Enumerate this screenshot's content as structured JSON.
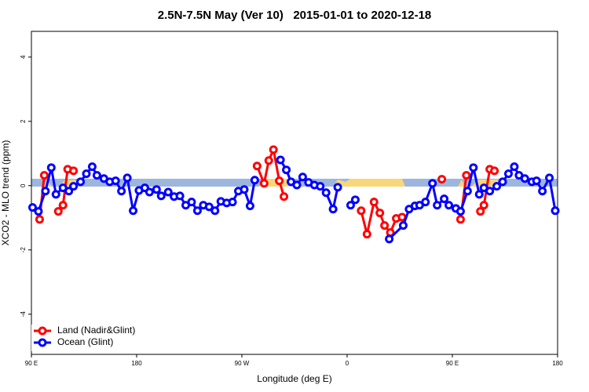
{
  "chart_data": {
    "type": "line",
    "title": "2.5N-7.5N May (Ver 10)   2015-01-01 to 2020-12-18",
    "x_label": "Longitude (deg E)",
    "y_label": "XCO2 - MLO trend (ppm)",
    "xlim": [
      90,
      540
    ],
    "ylim": [
      -5.25,
      4.8
    ],
    "xticks": [
      {
        "value": 90,
        "label": "90 E"
      },
      180,
      {
        "value": 270,
        "label": "90 W"
      },
      {
        "value": 360,
        "label": "0"
      },
      {
        "value": 450,
        "label": "90 E"
      },
      {
        "value": 540,
        "label": "180"
      }
    ],
    "yticks": [
      -4,
      -2,
      0,
      2,
      4
    ],
    "legend": "bottom-left",
    "series": [
      {
        "name": "Land (Nadir&Glint)",
        "color": "#ff0000",
        "x": [
          97,
          101,
          null,
          113,
          117,
          121,
          126,
          null,
          283,
          289,
          293,
          297,
          302,
          306,
          null,
          372,
          377,
          383,
          388,
          392,
          397,
          402,
          407,
          null,
          441,
          null,
          457,
          462,
          null,
          474,
          477,
          482,
          486
        ],
        "values": [
          -1.05,
          0.32,
          null,
          -0.8,
          -0.61,
          0.51,
          0.46,
          null,
          0.61,
          0.07,
          0.78,
          1.12,
          0.15,
          -0.34,
          null,
          -0.78,
          -1.51,
          -0.51,
          -0.85,
          -1.24,
          -1.46,
          -1.02,
          -0.98,
          null,
          0.2,
          null,
          -1.05,
          0.32,
          null,
          -0.8,
          -0.61,
          0.51,
          0.46
        ]
      },
      {
        "name": "Ocean (Glint)",
        "color": "#0000ff",
        "x": [
          91,
          96,
          102,
          107,
          111,
          117,
          122,
          126,
          132,
          137,
          142,
          146,
          152,
          157,
          162,
          167,
          172,
          177,
          182,
          187,
          191,
          197,
          201,
          207,
          212,
          217,
          222,
          227,
          232,
          237,
          242,
          247,
          252,
          257,
          262,
          267,
          272,
          277,
          281,
          null,
          303,
          308,
          312,
          317,
          322,
          327,
          332,
          337,
          342,
          348,
          352,
          null,
          363,
          367,
          null,
          396,
          408,
          413,
          418,
          422,
          427,
          433,
          437,
          443,
          447,
          453,
          457,
          463,
          468,
          473,
          477,
          482,
          488,
          493,
          498,
          503,
          507,
          512,
          518,
          522,
          527,
          533,
          538
        ],
        "values": [
          -0.68,
          -0.8,
          -0.17,
          0.56,
          -0.27,
          -0.07,
          -0.17,
          -0.02,
          0.12,
          0.37,
          0.59,
          0.32,
          0.22,
          0.12,
          0.15,
          -0.17,
          0.24,
          -0.78,
          -0.15,
          -0.07,
          -0.2,
          -0.12,
          -0.32,
          -0.2,
          -0.34,
          -0.32,
          -0.61,
          -0.51,
          -0.78,
          -0.61,
          -0.66,
          -0.78,
          -0.49,
          -0.54,
          -0.51,
          -0.17,
          -0.12,
          -0.63,
          0.17,
          null,
          0.8,
          0.49,
          0.12,
          0.02,
          0.27,
          0.1,
          0.02,
          -0.02,
          -0.22,
          -0.73,
          -0.05,
          null,
          -0.61,
          -0.44,
          null,
          -1.66,
          -1.24,
          -0.73,
          -0.63,
          -0.61,
          -0.51,
          0.07,
          -0.61,
          -0.41,
          -0.61,
          -0.71,
          -0.8,
          -0.17,
          0.56,
          -0.27,
          -0.07,
          -0.17,
          -0.02,
          0.12,
          0.37,
          0.59,
          0.32,
          0.22,
          0.12,
          0.15,
          -0.17,
          0.24,
          -0.78
        ]
      }
    ]
  }
}
